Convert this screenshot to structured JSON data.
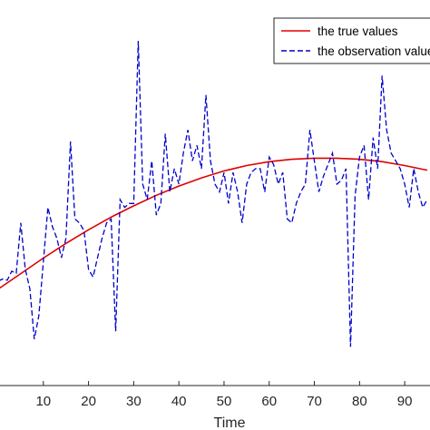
{
  "chart_data": {
    "type": "line",
    "xlabel": "Time",
    "ylabel": "",
    "xlim": [
      0,
      96
    ],
    "ylim": [
      0,
      1
    ],
    "grid": false,
    "legend": {
      "placement": "top-right",
      "entries": [
        "the true values",
        "the observation values"
      ]
    },
    "x_ticks": [
      {
        "value": 10,
        "label": "10"
      },
      {
        "value": 20,
        "label": "20"
      },
      {
        "value": 30,
        "label": "30"
      },
      {
        "value": 40,
        "label": "40"
      },
      {
        "value": 50,
        "label": "50"
      },
      {
        "value": 60,
        "label": "60"
      },
      {
        "value": 70,
        "label": "70"
      },
      {
        "value": 80,
        "label": "80"
      },
      {
        "value": 90,
        "label": "90"
      }
    ],
    "series": [
      {
        "name": "the true values",
        "color": "#e00000",
        "style": "solid",
        "x": [
          0,
          5,
          10,
          15,
          20,
          25,
          30,
          35,
          40,
          45,
          50,
          55,
          60,
          65,
          70,
          75,
          80,
          85,
          90,
          95
        ],
        "y": [
          0.249,
          0.289,
          0.329,
          0.367,
          0.402,
          0.435,
          0.464,
          0.491,
          0.515,
          0.536,
          0.554,
          0.568,
          0.578,
          0.584,
          0.587,
          0.587,
          0.584,
          0.578,
          0.568,
          0.556
        ]
      },
      {
        "name": "the observation values",
        "color": "#0000cc",
        "style": "dashed",
        "x": [
          0,
          1,
          2,
          3,
          4,
          5,
          6,
          7,
          8,
          9,
          10,
          11,
          12,
          13,
          14,
          15,
          16,
          17,
          18,
          19,
          20,
          21,
          22,
          23,
          24,
          25,
          26,
          27,
          28,
          29,
          30,
          31,
          32,
          33,
          34,
          35,
          36,
          37,
          38,
          39,
          40,
          41,
          42,
          43,
          44,
          45,
          46,
          47,
          48,
          49,
          50,
          51,
          52,
          53,
          54,
          55,
          56,
          57,
          58,
          59,
          60,
          61,
          62,
          63,
          64,
          65,
          66,
          67,
          68,
          69,
          70,
          71,
          72,
          73,
          74,
          75,
          76,
          77,
          78,
          79,
          80,
          81,
          82,
          83,
          84,
          85,
          86,
          87,
          88,
          89,
          90,
          91,
          92,
          93,
          94,
          95
        ],
        "y": [
          0.27,
          0.275,
          0.272,
          0.295,
          0.29,
          0.42,
          0.3,
          0.25,
          0.12,
          0.18,
          0.32,
          0.46,
          0.41,
          0.38,
          0.33,
          0.38,
          0.63,
          0.43,
          0.42,
          0.4,
          0.3,
          0.28,
          0.33,
          0.38,
          0.42,
          0.43,
          0.14,
          0.48,
          0.46,
          0.47,
          0.47,
          0.89,
          0.52,
          0.48,
          0.58,
          0.44,
          0.47,
          0.65,
          0.5,
          0.56,
          0.52,
          0.6,
          0.66,
          0.58,
          0.62,
          0.56,
          0.75,
          0.58,
          0.52,
          0.5,
          0.55,
          0.47,
          0.55,
          0.5,
          0.42,
          0.52,
          0.55,
          0.56,
          0.56,
          0.5,
          0.59,
          0.57,
          0.52,
          0.55,
          0.43,
          0.42,
          0.47,
          0.5,
          0.52,
          0.66,
          0.58,
          0.5,
          0.54,
          0.57,
          0.6,
          0.52,
          0.53,
          0.56,
          0.1,
          0.49,
          0.59,
          0.62,
          0.48,
          0.64,
          0.56,
          0.8,
          0.66,
          0.6,
          0.58,
          0.56,
          0.52,
          0.46,
          0.56,
          0.5,
          0.46,
          0.48
        ]
      }
    ]
  }
}
